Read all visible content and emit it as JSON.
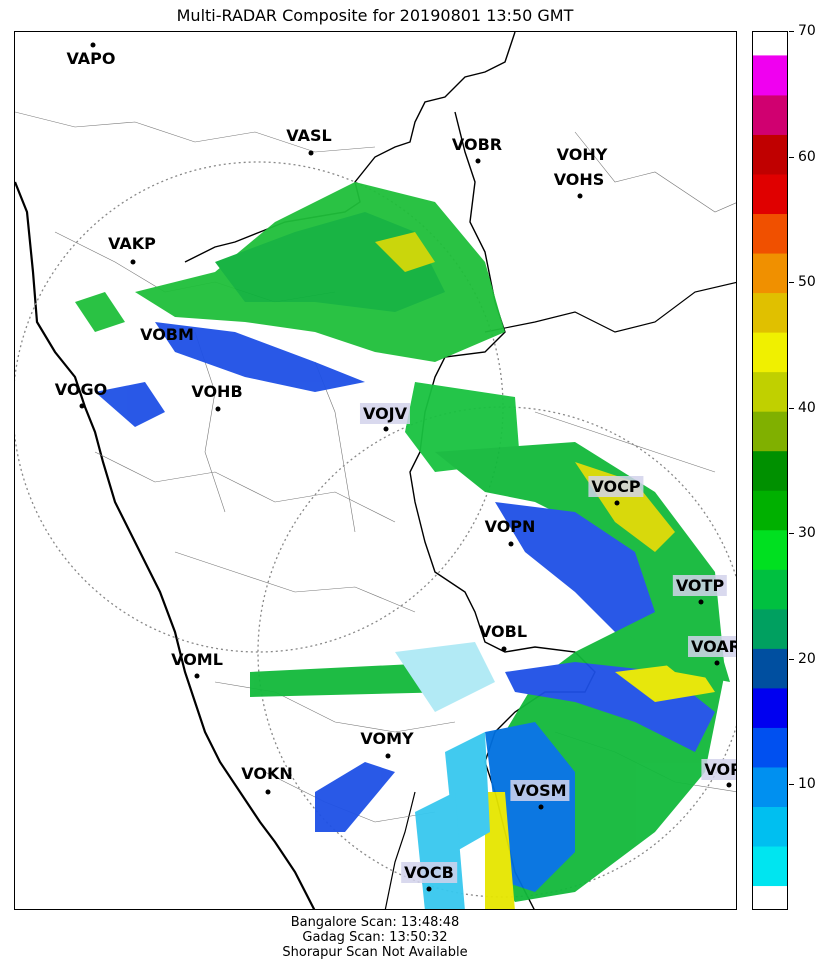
{
  "title": "Multi-RADAR Composite for 20190801 13:50 GMT",
  "stations": [
    {
      "id": "VAPO",
      "highlight": false
    },
    {
      "id": "VASL",
      "highlight": false
    },
    {
      "id": "VOBR",
      "highlight": false
    },
    {
      "id": "VOHY",
      "highlight": false
    },
    {
      "id": "VOHS",
      "highlight": false
    },
    {
      "id": "VAKP",
      "highlight": false
    },
    {
      "id": "VOBM",
      "highlight": false
    },
    {
      "id": "VOGO",
      "highlight": false
    },
    {
      "id": "VOHB",
      "highlight": false
    },
    {
      "id": "VOJV",
      "highlight": true
    },
    {
      "id": "VOCP",
      "highlight": true
    },
    {
      "id": "VOPN",
      "highlight": false
    },
    {
      "id": "VOTP",
      "highlight": true
    },
    {
      "id": "VOBL",
      "highlight": false
    },
    {
      "id": "VOAR",
      "highlight": true
    },
    {
      "id": "VOML",
      "highlight": false
    },
    {
      "id": "VOMY",
      "highlight": false
    },
    {
      "id": "VOKN",
      "highlight": false
    },
    {
      "id": "VOSM",
      "highlight": true
    },
    {
      "id": "VOPC",
      "highlight": true
    },
    {
      "id": "VOCB",
      "highlight": true
    }
  ],
  "colorbar": {
    "min": 0,
    "max": 70,
    "ticks": [
      "10",
      "20",
      "30",
      "40",
      "50",
      "60",
      "70"
    ],
    "tick_values": [
      10,
      20,
      30,
      40,
      50,
      60,
      70
    ],
    "colors": [
      "#00e5f0",
      "#00bff0",
      "#0090f0",
      "#0050f0",
      "#0000f0",
      "#004fa0",
      "#00a060",
      "#00c040",
      "#00e020",
      "#00b000",
      "#009000",
      "#80b000",
      "#c0d000",
      "#f0f000",
      "#e0c000",
      "#f09000",
      "#f05000",
      "#e00000",
      "#c00000",
      "#d00070",
      "#f000f0"
    ]
  },
  "footer": {
    "line1": "Bangalore Scan: 13:48:48",
    "line2": "Gadag Scan: 13:50:32",
    "line3": "Shorapur Scan Not Available"
  }
}
